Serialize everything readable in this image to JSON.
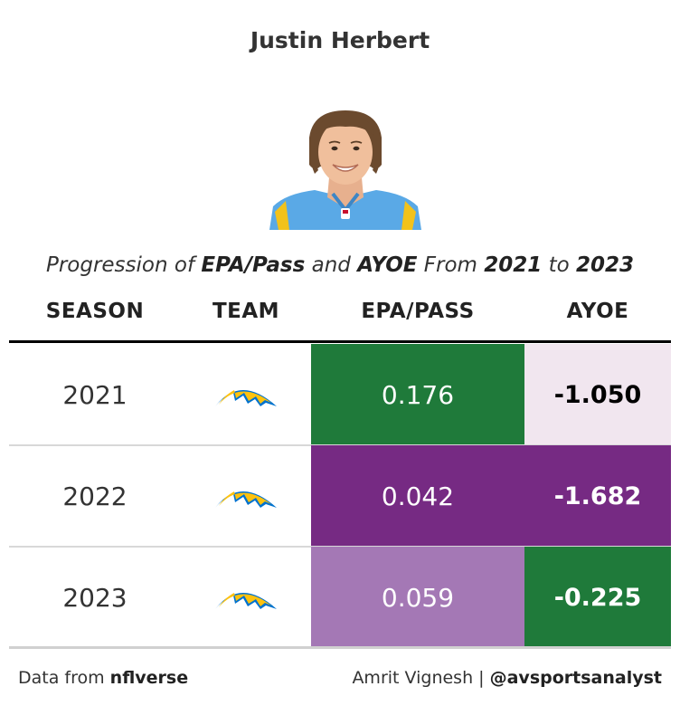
{
  "title": "Justin Herbert",
  "subtitle": {
    "p1": "Progression of ",
    "b1": "EPA/Pass",
    "p2": " and ",
    "b2": "AYOE",
    "p3": " From ",
    "b3": "2021",
    "p4": " to ",
    "b4": "2023"
  },
  "headshot_icon": "player-headshot",
  "team_logo_icon": "chargers-bolt-logo",
  "chart_data": {
    "type": "table",
    "columns": [
      "SEASON",
      "TEAM",
      "EPA/PASS",
      "AYOE"
    ],
    "rows": [
      {
        "season": "2021",
        "team": "LAC",
        "epa_pass": "0.176",
        "ayoe": "-1.050",
        "epa_bg": "#1f7a3a",
        "epa_fg": "#ffffff",
        "ayoe_bg": "#f1e6ef",
        "ayoe_fg": "#000000"
      },
      {
        "season": "2022",
        "team": "LAC",
        "epa_pass": "0.042",
        "ayoe": "-1.682",
        "epa_bg": "#762a83",
        "epa_fg": "#ffffff",
        "ayoe_bg": "#762a83",
        "ayoe_fg": "#ffffff"
      },
      {
        "season": "2023",
        "team": "LAC",
        "epa_pass": "0.059",
        "ayoe": "-0.225",
        "epa_bg": "#a478b5",
        "epa_fg": "#ffffff",
        "ayoe_bg": "#1f7a3a",
        "ayoe_fg": "#ffffff"
      }
    ]
  },
  "footer": {
    "left_prefix": "Data from ",
    "left_source": "nflverse",
    "right_prefix": "Amrit Vignesh | ",
    "right_handle": "@avsportsanalyst"
  }
}
